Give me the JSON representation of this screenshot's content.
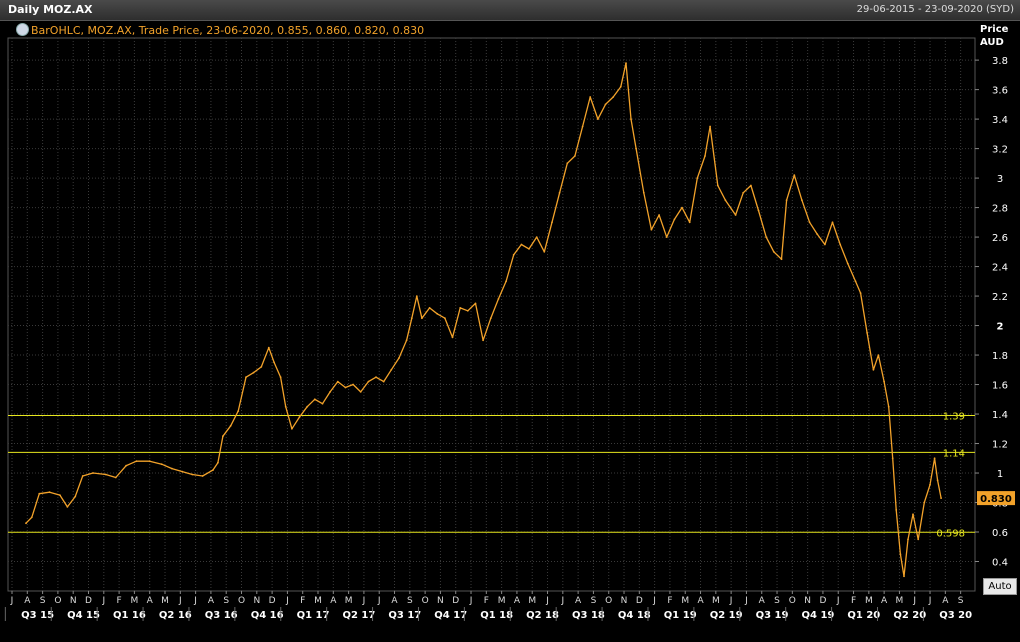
{
  "window": {
    "title": "Daily MOZ.AX",
    "date_range": "29-06-2015 - 23-09-2020 (SYD)"
  },
  "legend": {
    "text": "BarOHLC, MOZ.AX, Trade Price, 23-06-2020, 0.855, 0.860, 0.820, 0.830"
  },
  "axis_header": {
    "line1": "Price",
    "line2": "AUD"
  },
  "auto_button": "Auto",
  "colors": {
    "series": "#f2a22a",
    "reference_lines": "#e6e61e",
    "grid": "#3a3a3a",
    "background": "#000000",
    "last_price_bg": "#f2a22a"
  },
  "chart_data": {
    "type": "line",
    "x_unit": "date",
    "ylim": [
      0.2,
      3.95
    ],
    "yticks": [
      "0.4",
      "0.6",
      "0.8",
      "1",
      "1.2",
      "1.4",
      "1.6",
      "1.8",
      "2",
      "2.2",
      "2.4",
      "2.6",
      "2.8",
      "3",
      "3.2",
      "3.4",
      "3.6",
      "3.8"
    ],
    "month_labels": [
      "J",
      "A",
      "S",
      "O",
      "N",
      "D",
      "J",
      "F",
      "M",
      "A",
      "M",
      "J",
      "J",
      "A",
      "S",
      "O",
      "N",
      "D",
      "J",
      "F",
      "M",
      "A",
      "M",
      "J",
      "J",
      "A",
      "S",
      "O",
      "N",
      "D",
      "J",
      "F",
      "M",
      "A",
      "M",
      "J",
      "J",
      "A",
      "S",
      "O",
      "N",
      "D",
      "J",
      "F",
      "M",
      "A",
      "M",
      "J",
      "J",
      "A",
      "S",
      "O",
      "N",
      "D",
      "J",
      "F",
      "M",
      "A",
      "M",
      "J",
      "J",
      "A",
      "S"
    ],
    "quarter_labels": [
      "Q3 15",
      "Q4 15",
      "Q1 16",
      "Q2 16",
      "Q3 16",
      "Q4 16",
      "Q1 17",
      "Q2 17",
      "Q3 17",
      "Q4 17",
      "Q1 18",
      "Q2 18",
      "Q3 18",
      "Q4 18",
      "Q1 19",
      "Q2 19",
      "Q3 19",
      "Q4 19",
      "Q1 20",
      "Q2 20",
      "Q3 20"
    ],
    "x_start": "2015-06",
    "x_end": "2020-09",
    "reference_lines": [
      {
        "value": 1.39,
        "label": "1.39"
      },
      {
        "value": 1.14,
        "label": "1.14"
      },
      {
        "value": 0.598,
        "label": "0.598"
      }
    ],
    "last_price": {
      "value": 0.83,
      "label": "0.830"
    },
    "series": [
      {
        "points": [
          [
            "2015-06-29",
            0.66
          ],
          [
            "2015-07-10",
            0.7
          ],
          [
            "2015-07-25",
            0.86
          ],
          [
            "2015-08-15",
            0.87
          ],
          [
            "2015-09-05",
            0.85
          ],
          [
            "2015-09-20",
            0.77
          ],
          [
            "2015-10-05",
            0.84
          ],
          [
            "2015-10-20",
            0.98
          ],
          [
            "2015-11-10",
            1.0
          ],
          [
            "2015-12-05",
            0.99
          ],
          [
            "2015-12-25",
            0.97
          ],
          [
            "2016-01-15",
            1.05
          ],
          [
            "2016-02-05",
            1.08
          ],
          [
            "2016-03-01",
            1.08
          ],
          [
            "2016-03-25",
            1.06
          ],
          [
            "2016-04-15",
            1.03
          ],
          [
            "2016-05-05",
            1.01
          ],
          [
            "2016-05-25",
            0.99
          ],
          [
            "2016-06-15",
            0.98
          ],
          [
            "2016-07-05",
            1.02
          ],
          [
            "2016-07-15",
            1.07
          ],
          [
            "2016-07-25",
            1.25
          ],
          [
            "2016-08-10",
            1.32
          ],
          [
            "2016-08-25",
            1.42
          ],
          [
            "2016-09-10",
            1.65
          ],
          [
            "2016-09-25",
            1.68
          ],
          [
            "2016-10-10",
            1.72
          ],
          [
            "2016-10-25",
            1.85
          ],
          [
            "2016-11-05",
            1.75
          ],
          [
            "2016-11-18",
            1.65
          ],
          [
            "2016-11-28",
            1.45
          ],
          [
            "2016-12-10",
            1.3
          ],
          [
            "2016-12-25",
            1.38
          ],
          [
            "2017-01-10",
            1.45
          ],
          [
            "2017-01-25",
            1.5
          ],
          [
            "2017-02-10",
            1.47
          ],
          [
            "2017-02-25",
            1.55
          ],
          [
            "2017-03-10",
            1.62
          ],
          [
            "2017-03-25",
            1.58
          ],
          [
            "2017-04-10",
            1.6
          ],
          [
            "2017-04-25",
            1.55
          ],
          [
            "2017-05-10",
            1.62
          ],
          [
            "2017-05-25",
            1.65
          ],
          [
            "2017-06-10",
            1.62
          ],
          [
            "2017-06-25",
            1.7
          ],
          [
            "2017-07-10",
            1.78
          ],
          [
            "2017-07-25",
            1.9
          ],
          [
            "2017-08-05",
            2.05
          ],
          [
            "2017-08-15",
            2.2
          ],
          [
            "2017-08-25",
            2.05
          ],
          [
            "2017-09-10",
            2.12
          ],
          [
            "2017-09-25",
            2.08
          ],
          [
            "2017-10-10",
            2.05
          ],
          [
            "2017-10-25",
            1.92
          ],
          [
            "2017-11-10",
            2.12
          ],
          [
            "2017-11-25",
            2.1
          ],
          [
            "2017-12-10",
            2.15
          ],
          [
            "2017-12-25",
            1.9
          ],
          [
            "2018-01-10",
            2.05
          ],
          [
            "2018-01-25",
            2.18
          ],
          [
            "2018-02-10",
            2.3
          ],
          [
            "2018-02-25",
            2.48
          ],
          [
            "2018-03-10",
            2.55
          ],
          [
            "2018-03-25",
            2.52
          ],
          [
            "2018-04-10",
            2.6
          ],
          [
            "2018-04-25",
            2.5
          ],
          [
            "2018-05-10",
            2.7
          ],
          [
            "2018-05-25",
            2.9
          ],
          [
            "2018-06-10",
            3.1
          ],
          [
            "2018-06-25",
            3.15
          ],
          [
            "2018-07-10",
            3.35
          ],
          [
            "2018-07-25",
            3.55
          ],
          [
            "2018-08-10",
            3.4
          ],
          [
            "2018-08-25",
            3.5
          ],
          [
            "2018-09-10",
            3.55
          ],
          [
            "2018-09-25",
            3.62
          ],
          [
            "2018-10-05",
            3.78
          ],
          [
            "2018-10-15",
            3.4
          ],
          [
            "2018-10-25",
            3.2
          ],
          [
            "2018-11-10",
            2.9
          ],
          [
            "2018-11-25",
            2.65
          ],
          [
            "2018-12-10",
            2.75
          ],
          [
            "2018-12-25",
            2.6
          ],
          [
            "2019-01-10",
            2.72
          ],
          [
            "2019-01-25",
            2.8
          ],
          [
            "2019-02-10",
            2.7
          ],
          [
            "2019-02-25",
            3.0
          ],
          [
            "2019-03-10",
            3.15
          ],
          [
            "2019-03-20",
            3.35
          ],
          [
            "2019-04-05",
            2.95
          ],
          [
            "2019-04-20",
            2.85
          ],
          [
            "2019-05-10",
            2.75
          ],
          [
            "2019-05-25",
            2.9
          ],
          [
            "2019-06-10",
            2.95
          ],
          [
            "2019-06-25",
            2.78
          ],
          [
            "2019-07-10",
            2.6
          ],
          [
            "2019-07-25",
            2.5
          ],
          [
            "2019-08-10",
            2.45
          ],
          [
            "2019-08-20",
            2.85
          ],
          [
            "2019-09-05",
            3.02
          ],
          [
            "2019-09-20",
            2.85
          ],
          [
            "2019-10-05",
            2.7
          ],
          [
            "2019-10-20",
            2.62
          ],
          [
            "2019-11-05",
            2.55
          ],
          [
            "2019-11-20",
            2.7
          ],
          [
            "2019-12-05",
            2.55
          ],
          [
            "2019-12-20",
            2.42
          ],
          [
            "2020-01-05",
            2.3
          ],
          [
            "2020-01-15",
            2.22
          ],
          [
            "2020-01-28",
            1.95
          ],
          [
            "2020-02-10",
            1.7
          ],
          [
            "2020-02-20",
            1.8
          ],
          [
            "2020-03-01",
            1.62
          ],
          [
            "2020-03-10",
            1.45
          ],
          [
            "2020-03-18",
            1.1
          ],
          [
            "2020-03-25",
            0.75
          ],
          [
            "2020-04-03",
            0.45
          ],
          [
            "2020-04-10",
            0.3
          ],
          [
            "2020-04-18",
            0.55
          ],
          [
            "2020-04-28",
            0.72
          ],
          [
            "2020-05-08",
            0.55
          ],
          [
            "2020-05-20",
            0.8
          ],
          [
            "2020-06-01",
            0.92
          ],
          [
            "2020-06-10",
            1.1
          ],
          [
            "2020-06-16",
            0.95
          ],
          [
            "2020-06-23",
            0.83
          ]
        ]
      }
    ]
  }
}
